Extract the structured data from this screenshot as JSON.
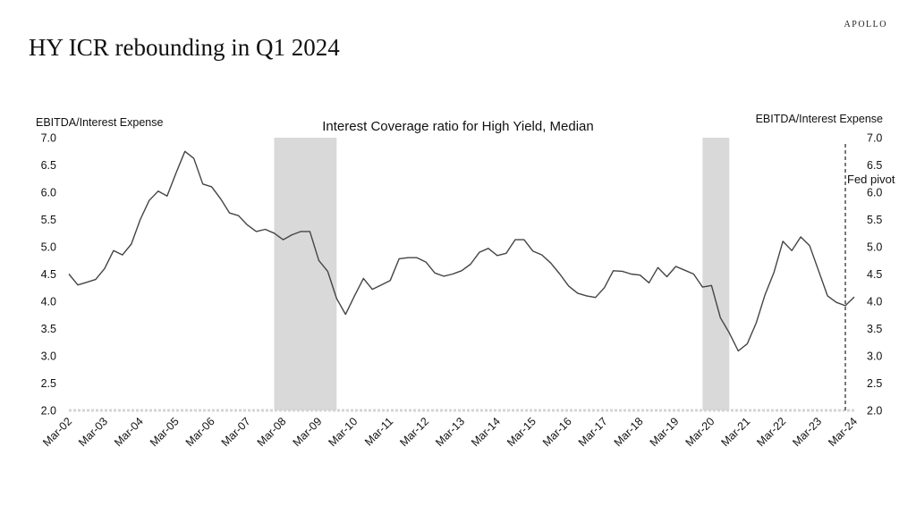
{
  "brand": "APOLLO",
  "page_title": "HY ICR rebounding in Q1 2024",
  "chart_data": {
    "type": "line",
    "title": "Interest Coverage ratio for High Yield, Median",
    "ylabel_left": "EBITDA/Interest Expense",
    "ylabel_right": "EBITDA/Interest Expense",
    "ylim": [
      2.0,
      7.0
    ],
    "yticks": [
      "2.0",
      "2.5",
      "3.0",
      "3.5",
      "4.0",
      "4.5",
      "5.0",
      "5.5",
      "6.0",
      "6.5",
      "7.0"
    ],
    "xticks": [
      "Mar-02",
      "Mar-03",
      "Mar-04",
      "Mar-05",
      "Mar-06",
      "Mar-07",
      "Mar-08",
      "Mar-09",
      "Mar-10",
      "Mar-11",
      "Mar-12",
      "Mar-13",
      "Mar-14",
      "Mar-15",
      "Mar-16",
      "Mar-17",
      "Mar-18",
      "Mar-19",
      "Mar-20",
      "Mar-21",
      "Mar-22",
      "Mar-23",
      "Mar-24"
    ],
    "recessions": [
      {
        "start": 2007.75,
        "end": 2009.5
      },
      {
        "start": 2019.75,
        "end": 2020.5
      }
    ],
    "annotations": [
      {
        "label": "Fed pivot",
        "x": 2023.75,
        "style": "dashed"
      }
    ],
    "series": [
      {
        "color": "#444444",
        "x": [
          2002.0,
          2002.25,
          2002.5,
          2002.75,
          2003.0,
          2003.25,
          2003.5,
          2003.75,
          2004.0,
          2004.25,
          2004.5,
          2004.75,
          2005.0,
          2005.25,
          2005.5,
          2005.75,
          2006.0,
          2006.25,
          2006.5,
          2006.75,
          2007.0,
          2007.25,
          2007.5,
          2007.75,
          2008.0,
          2008.25,
          2008.5,
          2008.75,
          2009.0,
          2009.25,
          2009.5,
          2009.75,
          2010.0,
          2010.25,
          2010.5,
          2010.75,
          2011.0,
          2011.25,
          2011.5,
          2011.75,
          2012.0,
          2012.25,
          2012.5,
          2012.75,
          2013.0,
          2013.25,
          2013.5,
          2013.75,
          2014.0,
          2014.25,
          2014.5,
          2014.75,
          2015.0,
          2015.25,
          2015.5,
          2015.75,
          2016.0,
          2016.25,
          2016.5,
          2016.75,
          2017.0,
          2017.25,
          2017.5,
          2017.75,
          2018.0,
          2018.25,
          2018.5,
          2018.75,
          2019.0,
          2019.25,
          2019.5,
          2019.75,
          2020.0,
          2020.25,
          2020.5,
          2020.75,
          2021.0,
          2021.25,
          2021.5,
          2021.75,
          2022.0,
          2022.25,
          2022.5,
          2022.75,
          2023.0,
          2023.25,
          2023.5,
          2023.75,
          2024.0
        ],
        "values": [
          4.5,
          4.3,
          4.35,
          4.4,
          4.6,
          4.93,
          4.85,
          5.05,
          5.5,
          5.85,
          6.02,
          5.93,
          6.35,
          6.75,
          6.62,
          6.15,
          6.1,
          5.88,
          5.62,
          5.57,
          5.4,
          5.28,
          5.32,
          5.25,
          5.13,
          5.22,
          5.28,
          5.28,
          4.75,
          4.55,
          4.05,
          3.76,
          4.1,
          4.42,
          4.22,
          4.3,
          4.38,
          4.78,
          4.8,
          4.8,
          4.72,
          4.52,
          4.46,
          4.5,
          4.56,
          4.68,
          4.9,
          4.97,
          4.84,
          4.88,
          5.13,
          5.13,
          4.92,
          4.85,
          4.7,
          4.5,
          4.28,
          4.15,
          4.1,
          4.07,
          4.25,
          4.56,
          4.55,
          4.5,
          4.48,
          4.34,
          4.62,
          4.45,
          4.64,
          4.57,
          4.5,
          4.26,
          4.29,
          3.7,
          3.42,
          3.09,
          3.22,
          3.6,
          4.12,
          4.53,
          5.1,
          4.93,
          5.18,
          5.02,
          4.56,
          4.1,
          3.98,
          3.92,
          4.08
        ]
      }
    ]
  }
}
